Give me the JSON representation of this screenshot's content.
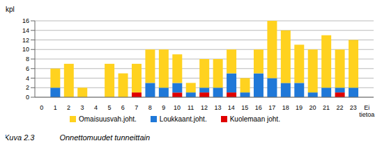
{
  "chart_data": {
    "type": "bar",
    "stacked": true,
    "y_label": "kpl",
    "annotations": [
      "Kuva 2.3",
      "Onnettomuudet tunneittain"
    ],
    "categories": [
      "0",
      "1",
      "2",
      "3",
      "4",
      "5",
      "6",
      "7",
      "8",
      "9",
      "10",
      "11",
      "12",
      "13",
      "14",
      "15",
      "16",
      "17",
      "18",
      "19",
      "20",
      "21",
      "22",
      "23",
      "Ei tietoa"
    ],
    "series": [
      {
        "name": "Kuolemaan joht.",
        "color": "#e00000",
        "values": [
          0,
          0,
          0,
          0,
          0,
          0,
          0,
          1,
          0,
          0,
          1,
          0,
          1,
          0,
          1,
          0,
          0,
          0,
          0,
          0,
          0,
          0,
          1,
          0,
          0
        ]
      },
      {
        "name": "Loukkaant.joht.",
        "color": "#1f78d8",
        "values": [
          0,
          2,
          0,
          0,
          0,
          0,
          0,
          0,
          3,
          2,
          2,
          1,
          1,
          2,
          4,
          1,
          5,
          4,
          3,
          3,
          1,
          2,
          1,
          2,
          0
        ]
      },
      {
        "name": "Omaisuusvah.joht.",
        "color": "#ffd21f",
        "values": [
          0,
          4,
          7,
          2,
          0,
          7,
          5,
          6,
          7,
          8,
          6,
          2,
          6,
          6,
          5,
          3,
          5,
          12,
          11,
          8,
          9,
          11,
          8,
          10,
          0
        ]
      }
    ],
    "ylim": [
      0,
      16
    ],
    "yticks": [
      0,
      2,
      4,
      6,
      8,
      10,
      12,
      14,
      16
    ],
    "grid": true,
    "legend": "bottom"
  }
}
